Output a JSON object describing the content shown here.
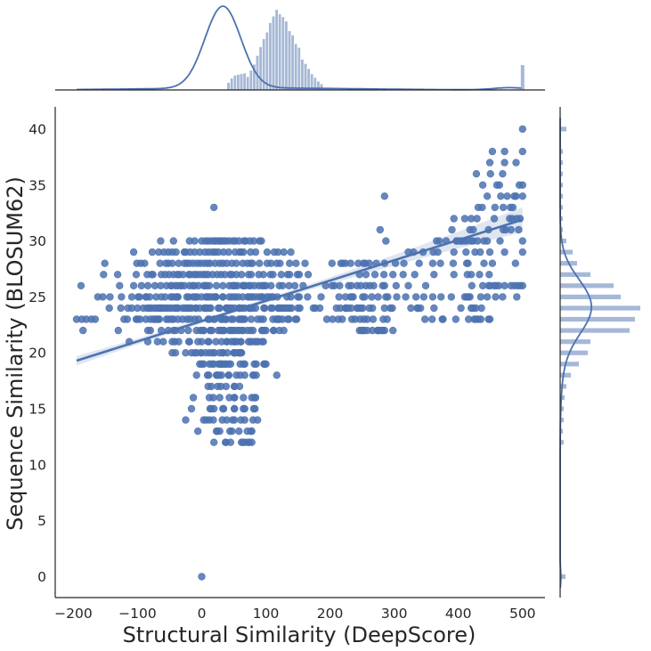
{
  "chart_data": {
    "type": "scatter",
    "subtype": "joint-plot",
    "xlabel": "Structural Similarity (DeepScore)",
    "ylabel": "Sequence Similarity (BLOSUM62)",
    "xlim": [
      -230,
      535
    ],
    "ylim": [
      -2,
      42
    ],
    "xticks": [
      -200,
      -100,
      0,
      100,
      200,
      300,
      400,
      500
    ],
    "yticks": [
      0,
      5,
      10,
      15,
      20,
      25,
      30,
      35,
      40
    ],
    "grid": false,
    "color": "#4c72b0",
    "regression": {
      "x_range": [
        -195,
        500
      ],
      "y_start": 19.3,
      "y_end": 31.9
    },
    "scatter_clusters": [
      {
        "y": 12,
        "x": [
          19,
          37,
          38,
          45,
          62,
          64,
          67,
          72,
          74,
          78
        ]
      },
      {
        "y": 13,
        "x": [
          -6,
          23,
          24,
          28,
          44,
          47,
          58,
          71,
          77,
          78
        ]
      },
      {
        "y": 14,
        "x": [
          -25,
          3,
          7,
          12,
          18,
          32,
          39,
          48,
          51,
          61,
          67,
          80,
          87
        ]
      },
      {
        "y": 15,
        "x": [
          -16,
          13,
          15,
          19,
          33,
          34,
          51,
          51,
          65,
          67,
          81,
          83
        ]
      },
      {
        "y": 16,
        "x": [
          -13,
          12,
          18,
          28,
          43,
          51,
          51,
          65,
          78,
          82,
          84
        ]
      },
      {
        "y": 17,
        "x": [
          10,
          15,
          25,
          30,
          38,
          51,
          51,
          59
        ]
      },
      {
        "y": 18,
        "x": [
          -8,
          9,
          11,
          23,
          24,
          27,
          31,
          42,
          42,
          54,
          60,
          67,
          80,
          81,
          85,
          117
        ]
      },
      {
        "y": 19,
        "x": [
          -3,
          0,
          3,
          12,
          16,
          19,
          26,
          29,
          30,
          30,
          33,
          36,
          38,
          42,
          45,
          60,
          65,
          67,
          82,
          85,
          98,
          97,
          100
        ]
      },
      {
        "y": 20,
        "x": [
          -46,
          -41,
          -25,
          -16,
          -11,
          -8,
          -1,
          -1,
          6,
          12,
          17,
          20,
          28,
          33,
          33,
          40,
          50,
          51,
          52,
          57,
          59,
          59,
          61,
          62
        ]
      },
      {
        "y": 21,
        "x": [
          -113,
          -84,
          -69,
          -60,
          -46,
          -42,
          -36,
          -20,
          -19,
          -6,
          0,
          10,
          11,
          22,
          31,
          39,
          39,
          46,
          51,
          51,
          51,
          55,
          61,
          61,
          73,
          76,
          77,
          82,
          85,
          88,
          94,
          96
        ]
      },
      {
        "y": 22,
        "x": [
          -185,
          -130,
          -84,
          -80,
          -63,
          -52,
          -44,
          -41,
          -32,
          -21,
          -8,
          -2,
          1,
          3,
          3,
          13,
          14,
          16,
          26,
          29,
          31,
          33,
          34,
          35,
          43,
          46,
          48,
          51,
          56,
          59,
          64,
          64,
          71,
          76,
          80,
          94,
          94,
          97,
          100,
          112,
          112,
          121,
          128,
          246,
          249,
          250,
          252,
          253,
          258,
          266,
          274,
          275,
          276,
          277,
          281,
          282,
          285,
          298
        ]
      },
      {
        "y": 23,
        "x": [
          -195,
          -187,
          -180,
          -172,
          -166,
          -121,
          -116,
          -102,
          -100,
          -96,
          -87,
          -80,
          -75,
          -73,
          -70,
          -68,
          -66,
          -55,
          -52,
          -47,
          -44,
          -37,
          -30,
          -23,
          -18,
          -11,
          -5,
          10,
          12,
          19,
          20,
          30,
          32,
          35,
          37,
          38,
          46,
          49,
          58,
          60,
          62,
          63,
          65,
          67,
          77,
          87,
          92,
          96,
          111,
          116,
          118,
          119,
          120,
          121,
          126,
          134,
          136,
          146,
          148,
          195,
          204,
          213,
          219,
          234,
          239,
          247,
          253,
          258,
          267,
          283,
          289,
          348,
          359,
          375,
          376,
          396,
          416,
          425,
          427,
          431,
          435,
          447,
          449
        ]
      },
      {
        "y": 24,
        "x": [
          -144,
          -126,
          -115,
          -109,
          -100,
          -91,
          -85,
          -82,
          -79,
          -74,
          -70,
          -66,
          -64,
          -62,
          -58,
          -55,
          -51,
          -47,
          -42,
          -40,
          -38,
          -37,
          -30,
          -26,
          -24,
          -21,
          -19,
          -16,
          -9,
          -9,
          -3,
          4,
          5,
          7,
          8,
          12,
          14,
          26,
          28,
          38,
          39,
          40,
          43,
          46,
          51,
          58,
          59,
          59,
          63,
          67,
          74,
          75,
          76,
          79,
          84,
          97,
          98,
          108,
          110,
          119,
          120,
          122,
          125,
          127,
          131,
          134,
          137,
          140,
          150,
          153,
          174,
          177,
          184,
          210,
          216,
          224,
          225,
          228,
          233,
          242,
          244,
          248,
          251,
          261,
          266,
          285,
          294,
          297,
          326,
          336,
          337,
          341,
          362,
          404,
          420,
          423,
          427,
          436
        ]
      },
      {
        "y": 25,
        "x": [
          -162,
          -154,
          -143,
          -125,
          -109,
          -99,
          -97,
          -87,
          -86,
          -81,
          -71,
          -63,
          -57,
          -48,
          -45,
          -40,
          -38,
          -37,
          -23,
          -20,
          -13,
          -10,
          -7,
          0,
          7,
          8,
          10,
          13,
          18,
          21,
          22,
          22,
          33,
          33,
          43,
          47,
          52,
          57,
          64,
          72,
          73,
          77,
          79,
          84,
          90,
          94,
          94,
          101,
          105,
          109,
          111,
          118,
          133,
          139,
          150,
          152,
          165,
          186,
          214,
          224,
          232,
          234,
          236,
          251,
          254,
          265,
          275,
          287,
          290,
          304,
          318,
          334,
          346,
          360,
          373,
          389,
          410,
          413,
          416,
          418,
          435,
          445,
          458,
          469,
          491
        ]
      },
      {
        "y": 26,
        "x": [
          -188,
          -128,
          -106,
          -94,
          -84,
          -73,
          -64,
          -55,
          -48,
          -47,
          -41,
          -37,
          -32,
          -32,
          -27,
          -19,
          -14,
          -11,
          -5,
          3,
          6,
          8,
          12,
          23,
          33,
          43,
          48,
          50,
          52,
          56,
          64,
          65,
          66,
          68,
          74,
          76,
          82,
          89,
          94,
          97,
          100,
          108,
          121,
          126,
          136,
          145,
          158,
          193,
          203,
          207,
          215,
          229,
          233,
          242,
          248,
          256,
          262,
          268,
          282,
          285,
          303,
          322,
          349,
          421,
          438,
          447,
          450,
          456,
          459,
          463,
          472,
          482,
          487,
          492,
          496,
          500
        ]
      },
      {
        "y": 27,
        "x": [
          -153,
          -131,
          -102,
          -85,
          -78,
          -76,
          -63,
          -57,
          -51,
          -44,
          -38,
          -35,
          -29,
          -20,
          -18,
          -12,
          -8,
          -3,
          2,
          6,
          10,
          17,
          24,
          30,
          36,
          44,
          47,
          54,
          62,
          73,
          77,
          89,
          96,
          107,
          111,
          124,
          134,
          137,
          149,
          152,
          166,
          246,
          256,
          270,
          284,
          298,
          314,
          332,
          362,
          393,
          414,
          420,
          433,
          448
        ]
      },
      {
        "y": 28,
        "x": [
          -151,
          -101,
          -95,
          -89,
          -65,
          -56,
          -52,
          -46,
          -36,
          -27,
          -23,
          -19,
          -13,
          -7,
          -2,
          4,
          9,
          13,
          21,
          28,
          33,
          39,
          47,
          54,
          64,
          71,
          76,
          79,
          90,
          102,
          108,
          117,
          122,
          137,
          147,
          161,
          203,
          217,
          220,
          224,
          232,
          244,
          252,
          255,
          261,
          272,
          285,
          302,
          315,
          339,
          360,
          372,
          392,
          413,
          415,
          440,
          453,
          489
        ]
      },
      {
        "y": 29,
        "x": [
          -106,
          -77,
          -67,
          -59,
          -52,
          -46,
          -40,
          -27,
          -25,
          -18,
          -11,
          -3,
          5,
          11,
          17,
          21,
          26,
          34,
          42,
          52,
          59,
          61,
          65,
          76,
          84,
          102,
          113,
          119,
          128,
          139,
          322,
          330,
          345,
          361,
          368,
          393,
          412,
          426,
          434,
          449,
          472,
          500
        ]
      },
      {
        "y": 30,
        "x": [
          -64,
          -44,
          -19,
          -11,
          0,
          6,
          10,
          15,
          20,
          20,
          25,
          28,
          31,
          34,
          38,
          43,
          49,
          52,
          58,
          66,
          68,
          75,
          81,
          90,
          93,
          287,
          366,
          370,
          381,
          397,
          398,
          403,
          405,
          409,
          413,
          420,
          423,
          430,
          440,
          445,
          465,
          500
        ]
      },
      {
        "y": 31,
        "x": [
          278,
          390,
          418,
          423,
          447,
          470,
          474,
          482,
          494
        ]
      },
      {
        "y": 32,
        "x": [
          393,
          410,
          420,
          429,
          456,
          480,
          484,
          491,
          496
        ]
      },
      {
        "y": 33,
        "x": [
          19,
          431,
          437,
          457,
          470,
          481,
          485
        ]
      },
      {
        "y": 34,
        "x": [
          285,
          445,
          466,
          476,
          487,
          490,
          500
        ]
      },
      {
        "y": 35,
        "x": [
          438,
          460,
          464,
          495,
          500
        ]
      },
      {
        "y": 36,
        "x": [
          428,
          450,
          469
        ]
      },
      {
        "y": 37,
        "x": [
          449,
          472,
          490
        ]
      },
      {
        "y": 38,
        "x": [
          453,
          472,
          500
        ]
      },
      {
        "y": 40,
        "x": [
          500
        ]
      },
      {
        "y": 0,
        "x": [
          0
        ]
      }
    ],
    "marginal_x_hist": {
      "bin_width": 5,
      "bins": [
        {
          "x": 42,
          "count": 10
        },
        {
          "x": 47,
          "count": 16
        },
        {
          "x": 52,
          "count": 20
        },
        {
          "x": 57,
          "count": 21
        },
        {
          "x": 62,
          "count": 22
        },
        {
          "x": 67,
          "count": 23
        },
        {
          "x": 72,
          "count": 18
        },
        {
          "x": 77,
          "count": 27
        },
        {
          "x": 82,
          "count": 35
        },
        {
          "x": 87,
          "count": 47
        },
        {
          "x": 92,
          "count": 59
        },
        {
          "x": 97,
          "count": 70
        },
        {
          "x": 102,
          "count": 79
        },
        {
          "x": 107,
          "count": 92
        },
        {
          "x": 112,
          "count": 101
        },
        {
          "x": 117,
          "count": 110
        },
        {
          "x": 122,
          "count": 104
        },
        {
          "x": 127,
          "count": 100
        },
        {
          "x": 132,
          "count": 94
        },
        {
          "x": 137,
          "count": 81
        },
        {
          "x": 142,
          "count": 75
        },
        {
          "x": 147,
          "count": 63
        },
        {
          "x": 152,
          "count": 58
        },
        {
          "x": 157,
          "count": 42
        },
        {
          "x": 162,
          "count": 36
        },
        {
          "x": 167,
          "count": 29
        },
        {
          "x": 172,
          "count": 22
        },
        {
          "x": 177,
          "count": 17
        },
        {
          "x": 182,
          "count": 12
        },
        {
          "x": 187,
          "count": 8
        }
      ],
      "right_spike": {
        "x": 500,
        "count": 34
      }
    },
    "marginal_y_hist": {
      "bins": [
        {
          "y": 40,
          "count": 7
        },
        {
          "y": 38,
          "count": 3
        },
        {
          "y": 37,
          "count": 3
        },
        {
          "y": 36,
          "count": 3
        },
        {
          "y": 35,
          "count": 3
        },
        {
          "y": 34,
          "count": 3
        },
        {
          "y": 33,
          "count": 3
        },
        {
          "y": 32,
          "count": 3
        },
        {
          "y": 31,
          "count": 3
        },
        {
          "y": 30,
          "count": 7
        },
        {
          "y": 29,
          "count": 14
        },
        {
          "y": 28,
          "count": 19
        },
        {
          "y": 27,
          "count": 34
        },
        {
          "y": 26,
          "count": 60
        },
        {
          "y": 25,
          "count": 68
        },
        {
          "y": 24,
          "count": 90
        },
        {
          "y": 23,
          "count": 84
        },
        {
          "y": 22,
          "count": 78
        },
        {
          "y": 21,
          "count": 34
        },
        {
          "y": 20,
          "count": 31
        },
        {
          "y": 19,
          "count": 21
        },
        {
          "y": 18,
          "count": 12
        },
        {
          "y": 17,
          "count": 7
        },
        {
          "y": 16,
          "count": 5
        },
        {
          "y": 15,
          "count": 4
        },
        {
          "y": 14,
          "count": 4
        },
        {
          "y": 13,
          "count": 3
        },
        {
          "y": 12,
          "count": 4
        },
        {
          "y": 0,
          "count": 6
        }
      ]
    }
  }
}
